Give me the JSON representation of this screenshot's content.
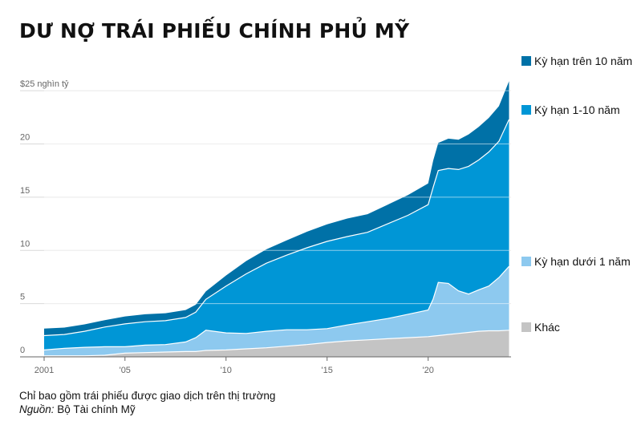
{
  "title": "DƯ NỢ TRÁI PHIẾU CHÍNH PHỦ MỸ",
  "note": "Chỉ bao gồm trái phiếu được giao dịch trên thị trường",
  "source_label": "Nguồn:",
  "source_text": " Bộ Tài chính Mỹ",
  "chart_data": {
    "type": "area",
    "stacked": true,
    "unit_label": "$25 nghìn tỷ",
    "y_ticks": [
      {
        "value": 0,
        "label": "0"
      },
      {
        "value": 5,
        "label": "5"
      },
      {
        "value": 10,
        "label": "10"
      },
      {
        "value": 15,
        "label": "15"
      },
      {
        "value": 20,
        "label": "20"
      },
      {
        "value": 25,
        "label": ""
      }
    ],
    "x_ticks": [
      {
        "value": 2001,
        "label": "2001"
      },
      {
        "value": 2005,
        "label": "'05"
      },
      {
        "value": 2010,
        "label": "'10"
      },
      {
        "value": 2015,
        "label": "'15"
      },
      {
        "value": 2020,
        "label": "'20"
      }
    ],
    "xlim": [
      2001,
      2024.1
    ],
    "ylim": [
      0,
      27.5
    ],
    "grid": true,
    "legend_position": "right",
    "x": [
      2001,
      2002,
      2003,
      2004,
      2005,
      2006,
      2007,
      2008,
      2008.5,
      2009,
      2010,
      2011,
      2012,
      2013,
      2014,
      2015,
      2016,
      2017,
      2018,
      2019,
      2020,
      2020.25,
      2020.5,
      2021,
      2021.5,
      2022,
      2022.5,
      2023,
      2023.5,
      2024
    ],
    "series": [
      {
        "name": "Khác",
        "color": "#c4c4c4",
        "values": [
          0.1,
          0.1,
          0.1,
          0.15,
          0.35,
          0.4,
          0.45,
          0.5,
          0.5,
          0.6,
          0.65,
          0.75,
          0.85,
          1.0,
          1.15,
          1.35,
          1.5,
          1.6,
          1.7,
          1.8,
          1.9,
          1.95,
          2.0,
          2.1,
          2.2,
          2.3,
          2.4,
          2.45,
          2.45,
          2.5
        ]
      },
      {
        "name": "Kỳ hạn dưới 1 năm",
        "color": "#8dc9ef",
        "values": [
          0.55,
          0.7,
          0.8,
          0.8,
          0.6,
          0.7,
          0.7,
          0.9,
          1.3,
          1.9,
          1.6,
          1.45,
          1.55,
          1.55,
          1.4,
          1.3,
          1.5,
          1.7,
          1.9,
          2.2,
          2.5,
          3.5,
          5.0,
          4.8,
          4.0,
          3.6,
          3.9,
          4.2,
          5.0,
          6.0
        ]
      },
      {
        "name": "Kỳ hạn 1-10 năm",
        "color": "#0096d6",
        "values": [
          1.35,
          1.3,
          1.5,
          1.85,
          2.15,
          2.2,
          2.25,
          2.3,
          2.4,
          2.9,
          4.4,
          5.6,
          6.4,
          7.0,
          7.7,
          8.2,
          8.3,
          8.4,
          8.9,
          9.3,
          9.9,
          10.5,
          10.5,
          10.8,
          11.4,
          12.0,
          12.2,
          12.6,
          12.8,
          13.8
        ]
      },
      {
        "name": "Kỳ hạn trên 10 năm",
        "color": "#0071a7",
        "values": [
          0.65,
          0.65,
          0.65,
          0.65,
          0.7,
          0.7,
          0.7,
          0.7,
          0.7,
          0.75,
          1.0,
          1.2,
          1.3,
          1.4,
          1.5,
          1.6,
          1.7,
          1.7,
          1.8,
          1.9,
          2.0,
          2.5,
          2.6,
          2.8,
          2.8,
          3.0,
          3.1,
          3.2,
          3.3,
          3.6
        ]
      }
    ]
  }
}
